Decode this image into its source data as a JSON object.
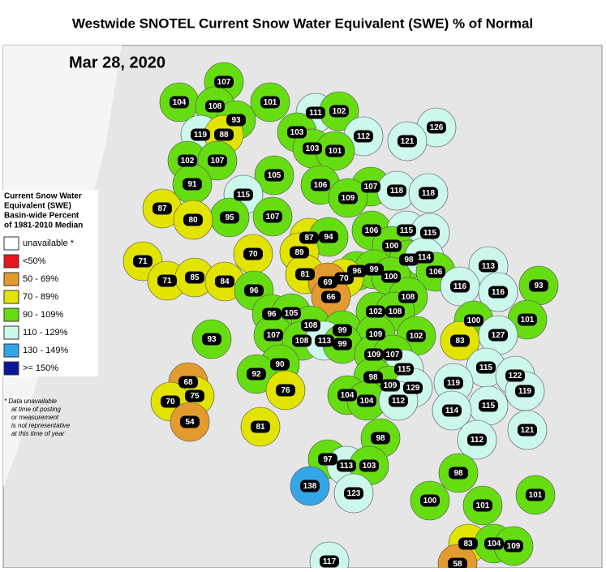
{
  "title": "Westwide SNOTEL Current Snow Water Equivalent (SWE) % of Normal",
  "date": "Mar 28, 2020",
  "legend": {
    "title_lines": [
      "Current Snow Water",
      "Equivalent (SWE)",
      "Basin-wide Percent",
      "of 1981-2010 Median"
    ],
    "items": [
      {
        "label": "unavailable *",
        "color": "#ffffff"
      },
      {
        "label": "<50%",
        "color": "#e8141b"
      },
      {
        "label": "50 - 69%",
        "color": "#e39b2d"
      },
      {
        "label": "70 - 89%",
        "color": "#e3e300"
      },
      {
        "label": "90 - 109%",
        "color": "#66dd11"
      },
      {
        "label": "110 - 129%",
        "color": "#ccf7ec"
      },
      {
        "label": "130 - 149%",
        "color": "#33a6e8"
      },
      {
        "label": ">= 150%",
        "color": "#0a169e"
      }
    ]
  },
  "footnote": [
    "*  Data unavailable",
    "at time of posting",
    "or measurement",
    "is not representative",
    "at this time of year"
  ],
  "basins": [
    104,
    107,
    108,
    101,
    93,
    111,
    102,
    126,
    119,
    88,
    103,
    112,
    121,
    103,
    101,
    102,
    107,
    105,
    91,
    106,
    107,
    118,
    118,
    115,
    109,
    87,
    95,
    107,
    80,
    106,
    115,
    115,
    87,
    94,
    100,
    71,
    70,
    89,
    98,
    114,
    113,
    106,
    81,
    96,
    99,
    71,
    85,
    84,
    70,
    69,
    100,
    93,
    116,
    116,
    96,
    66,
    108,
    102,
    108,
    96,
    105,
    100,
    101,
    108,
    99,
    93,
    107,
    109,
    102,
    83,
    127,
    108,
    113,
    99,
    109,
    107,
    90,
    115,
    115,
    92,
    98,
    122,
    68,
    119,
    109,
    129,
    119,
    76,
    75,
    104,
    104,
    112,
    70,
    115,
    114,
    121,
    54,
    81,
    98,
    112,
    97,
    113,
    103,
    98,
    138,
    123,
    100,
    101,
    101,
    83,
    104,
    109,
    117,
    58
  ]
}
